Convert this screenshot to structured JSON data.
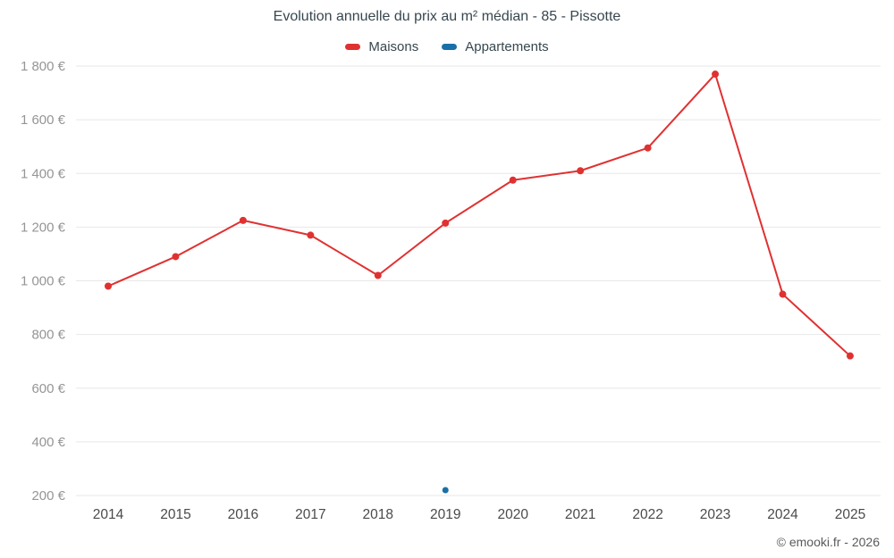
{
  "title": "Evolution annuelle du prix au m² médian - 85 - Pissotte",
  "legend": {
    "maisons": "Maisons",
    "appartements": "Appartements"
  },
  "footer": "© emooki.fr - 2026",
  "colors": {
    "maisons": "#e03131",
    "appartements": "#1a6fa8",
    "grid": "#e7e7e7",
    "ytick_text": "#959595",
    "xtick_text": "#4a4a4a",
    "title_text": "#37474f"
  },
  "chart_data": {
    "type": "line",
    "title": "Evolution annuelle du prix au m² médian - 85 - Pissotte",
    "categories": [
      "2014",
      "2015",
      "2016",
      "2017",
      "2018",
      "2019",
      "2020",
      "2021",
      "2022",
      "2023",
      "2024",
      "2025"
    ],
    "series": [
      {
        "name": "Maisons",
        "color": "#e03131",
        "values": [
          980,
          1090,
          1225,
          1170,
          1020,
          1215,
          1375,
          1410,
          1495,
          1770,
          950,
          720
        ]
      },
      {
        "name": "Appartements",
        "color": "#1a6fa8",
        "values": [
          null,
          null,
          null,
          null,
          null,
          220,
          null,
          null,
          null,
          null,
          null,
          null
        ]
      }
    ],
    "ylim": [
      200,
      1800
    ],
    "ytick_step": 200,
    "ytick_labels": [
      "200 €",
      "400 €",
      "600 €",
      "800 €",
      "1 000 €",
      "1 200 €",
      "1 400 €",
      "1 600 €",
      "1 800 €"
    ],
    "xlabel": "",
    "ylabel": "",
    "grid": "horizontal",
    "legend_position": "top"
  }
}
